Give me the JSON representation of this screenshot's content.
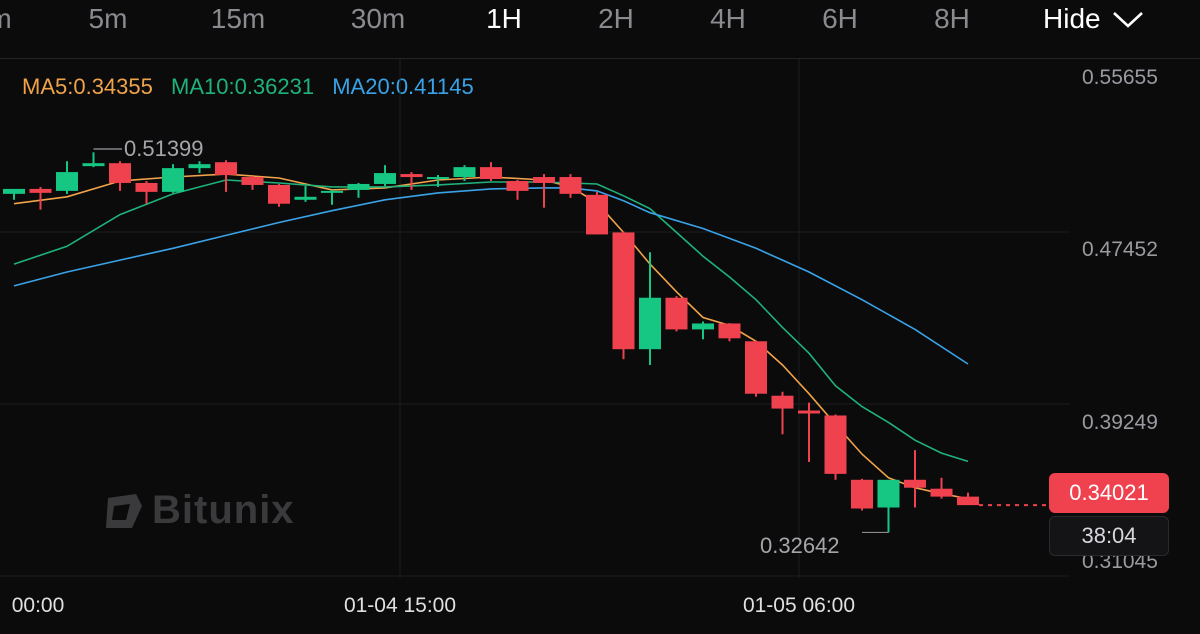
{
  "timeframes": [
    "m",
    "5m",
    "15m",
    "30m",
    "1H",
    "2H",
    "4H",
    "6H",
    "8H"
  ],
  "active_timeframe": "1H",
  "hide_label": "Hide",
  "ma_labels": {
    "ma5": "MA5:0.34355",
    "ma10": "MA10:0.36231",
    "ma20": "MA20:0.41145"
  },
  "colors": {
    "up": "#16c784",
    "down": "#f0414f",
    "ma5": "#f0a34a",
    "ma10": "#1fb27a",
    "ma20": "#3aa3e8",
    "background": "#0b0b0c"
  },
  "last_price": "0.34021",
  "countdown": "38:04",
  "high_label": "0.51399",
  "low_label": "0.32642",
  "watermark": "Bitunix",
  "chart_data": {
    "type": "candlestick",
    "y_axis_ticks": [
      "0.55655",
      "0.47452",
      "0.39249",
      "0.31045"
    ],
    "ylim": [
      0.31045,
      0.55655
    ],
    "x_axis_ticks": [
      "00:00",
      "01-04 15:00",
      "01-05 06:00"
    ],
    "candles": [
      {
        "o": 0.4975,
        "h": 0.4995,
        "l": 0.4945,
        "c": 0.5
      },
      {
        "o": 0.5,
        "h": 0.501,
        "l": 0.4895,
        "c": 0.498
      },
      {
        "o": 0.499,
        "h": 0.514,
        "l": 0.4975,
        "c": 0.5085
      },
      {
        "o": 0.5115,
        "h": 0.5185,
        "l": 0.511,
        "c": 0.513
      },
      {
        "o": 0.513,
        "h": 0.514,
        "l": 0.499,
        "c": 0.503
      },
      {
        "o": 0.503,
        "h": 0.504,
        "l": 0.4925,
        "c": 0.4985
      },
      {
        "o": 0.4985,
        "h": 0.5125,
        "l": 0.498,
        "c": 0.5105
      },
      {
        "o": 0.5105,
        "h": 0.514,
        "l": 0.508,
        "c": 0.5125
      },
      {
        "o": 0.5135,
        "h": 0.5145,
        "l": 0.4985,
        "c": 0.507
      },
      {
        "o": 0.506,
        "h": 0.5065,
        "l": 0.4995,
        "c": 0.502
      },
      {
        "o": 0.502,
        "h": 0.5025,
        "l": 0.491,
        "c": 0.4925
      },
      {
        "o": 0.4945,
        "h": 0.5015,
        "l": 0.4935,
        "c": 0.496
      },
      {
        "o": 0.498,
        "h": 0.4995,
        "l": 0.492,
        "c": 0.499
      },
      {
        "o": 0.4995,
        "h": 0.503,
        "l": 0.4955,
        "c": 0.5025
      },
      {
        "o": 0.5025,
        "h": 0.512,
        "l": 0.5015,
        "c": 0.508
      },
      {
        "o": 0.5075,
        "h": 0.5085,
        "l": 0.4995,
        "c": 0.506
      },
      {
        "o": 0.5055,
        "h": 0.507,
        "l": 0.501,
        "c": 0.506
      },
      {
        "o": 0.506,
        "h": 0.512,
        "l": 0.504,
        "c": 0.511
      },
      {
        "o": 0.511,
        "h": 0.5135,
        "l": 0.504,
        "c": 0.505
      },
      {
        "o": 0.504,
        "h": 0.5045,
        "l": 0.4945,
        "c": 0.499
      },
      {
        "o": 0.506,
        "h": 0.5075,
        "l": 0.4905,
        "c": 0.503
      },
      {
        "o": 0.506,
        "h": 0.5075,
        "l": 0.4955,
        "c": 0.4975
      },
      {
        "o": 0.497,
        "h": 0.4985,
        "l": 0.477,
        "c": 0.477
      },
      {
        "o": 0.478,
        "h": 0.4785,
        "l": 0.414,
        "c": 0.419
      },
      {
        "o": 0.419,
        "h": 0.468,
        "l": 0.411,
        "c": 0.445
      },
      {
        "o": 0.445,
        "h": 0.4458,
        "l": 0.428,
        "c": 0.429
      },
      {
        "o": 0.429,
        "h": 0.433,
        "l": 0.424,
        "c": 0.432
      },
      {
        "o": 0.432,
        "h": 0.4322,
        "l": 0.423,
        "c": 0.4245
      },
      {
        "o": 0.423,
        "h": 0.4235,
        "l": 0.395,
        "c": 0.3965
      },
      {
        "o": 0.3955,
        "h": 0.3975,
        "l": 0.376,
        "c": 0.389
      },
      {
        "o": 0.388,
        "h": 0.392,
        "l": 0.362,
        "c": 0.3865
      },
      {
        "o": 0.3855,
        "h": 0.386,
        "l": 0.353,
        "c": 0.356
      },
      {
        "o": 0.353,
        "h": 0.3535,
        "l": 0.3375,
        "c": 0.3385
      },
      {
        "o": 0.339,
        "h": 0.351,
        "l": 0.3264,
        "c": 0.353
      },
      {
        "o": 0.353,
        "h": 0.368,
        "l": 0.339,
        "c": 0.349
      },
      {
        "o": 0.3485,
        "h": 0.354,
        "l": 0.3435,
        "c": 0.3445
      },
      {
        "o": 0.3445,
        "h": 0.3465,
        "l": 0.3405,
        "c": 0.3402
      }
    ],
    "ma_series": [
      {
        "name": "MA5",
        "points": [
          [
            0,
            0.4925
          ],
          [
            2,
            0.496
          ],
          [
            4,
            0.504
          ],
          [
            6,
            0.506
          ],
          [
            8,
            0.5075
          ],
          [
            10,
            0.5055
          ],
          [
            12,
            0.4995
          ],
          [
            14,
            0.5005
          ],
          [
            16,
            0.5045
          ],
          [
            18,
            0.506
          ],
          [
            20,
            0.5045
          ],
          [
            21,
            0.501
          ],
          [
            22,
            0.493
          ],
          [
            23,
            0.478
          ],
          [
            24,
            0.462
          ],
          [
            25,
            0.448
          ],
          [
            26,
            0.435
          ],
          [
            27,
            0.431
          ],
          [
            28,
            0.423
          ],
          [
            29,
            0.411
          ],
          [
            30,
            0.3965
          ],
          [
            31,
            0.381
          ],
          [
            32,
            0.366
          ],
          [
            33,
            0.354
          ],
          [
            34,
            0.349
          ],
          [
            35,
            0.346
          ],
          [
            36,
            0.3435
          ]
        ]
      },
      {
        "name": "MA10",
        "points": [
          [
            0,
            0.462
          ],
          [
            2,
            0.471
          ],
          [
            4,
            0.487
          ],
          [
            6,
            0.4975
          ],
          [
            8,
            0.5045
          ],
          [
            10,
            0.503
          ],
          [
            12,
            0.501
          ],
          [
            14,
            0.501
          ],
          [
            16,
            0.502
          ],
          [
            18,
            0.5035
          ],
          [
            20,
            0.5035
          ],
          [
            22,
            0.5025
          ],
          [
            23,
            0.4965
          ],
          [
            24,
            0.49
          ],
          [
            25,
            0.478
          ],
          [
            26,
            0.466
          ],
          [
            27,
            0.4555
          ],
          [
            28,
            0.444
          ],
          [
            29,
            0.43
          ],
          [
            30,
            0.417
          ],
          [
            31,
            0.4005
          ],
          [
            32,
            0.39
          ],
          [
            33,
            0.382
          ],
          [
            34,
            0.373
          ],
          [
            35,
            0.3665
          ],
          [
            36,
            0.3623
          ]
        ]
      },
      {
        "name": "MA20",
        "points": [
          [
            0,
            0.451
          ],
          [
            2,
            0.458
          ],
          [
            4,
            0.464
          ],
          [
            6,
            0.47
          ],
          [
            8,
            0.4765
          ],
          [
            10,
            0.483
          ],
          [
            12,
            0.489
          ],
          [
            14,
            0.4945
          ],
          [
            16,
            0.498
          ],
          [
            18,
            0.5
          ],
          [
            20,
            0.5005
          ],
          [
            21,
            0.5005
          ],
          [
            22,
            0.499
          ],
          [
            23,
            0.494
          ],
          [
            24,
            0.488
          ],
          [
            26,
            0.48
          ],
          [
            28,
            0.47
          ],
          [
            30,
            0.458
          ],
          [
            32,
            0.444
          ],
          [
            34,
            0.429
          ],
          [
            36,
            0.4115
          ]
        ]
      }
    ],
    "grid": true
  }
}
